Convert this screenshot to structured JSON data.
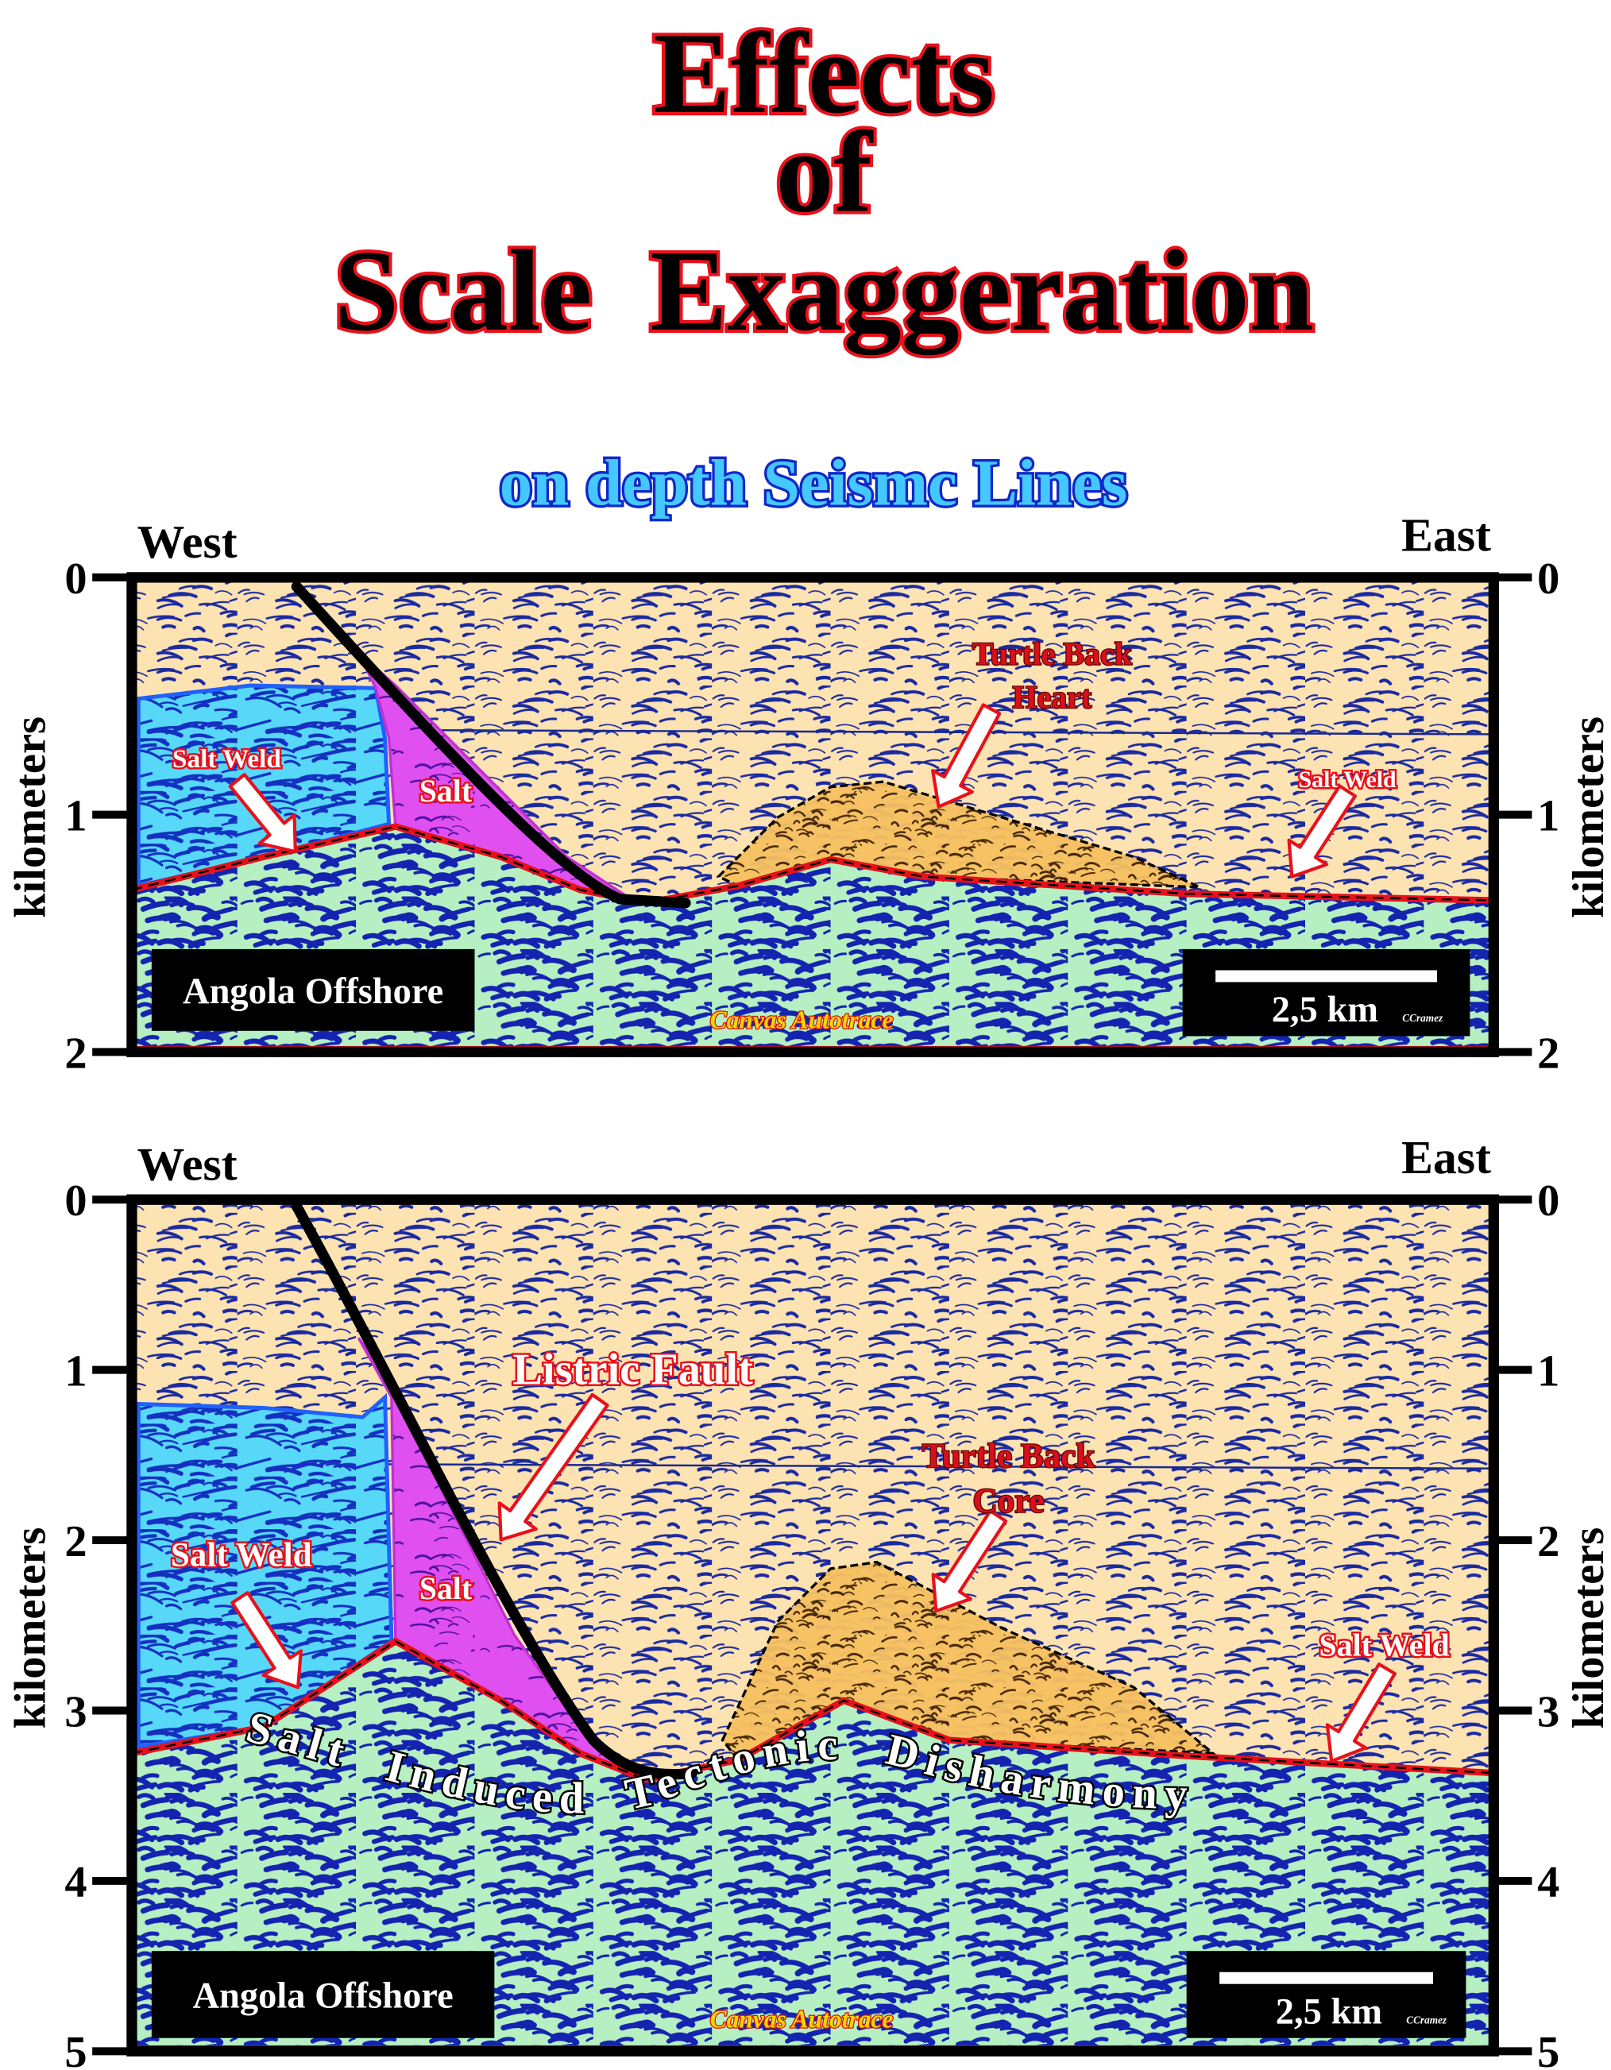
{
  "title": {
    "lines": [
      "Effects",
      "of",
      "Scale  Exaggeration"
    ]
  },
  "subtitle": "on depth Seismc Lines",
  "panels": [
    {
      "west": "West",
      "east": "East",
      "axis_label_left": "kilometers",
      "axis_label_right": "kilometers",
      "left_ticks": [
        0,
        1,
        2
      ],
      "right_ticks": [
        0,
        1,
        2
      ],
      "labels": {
        "salt_weld_left": "Salt Weld",
        "salt": "Salt",
        "turtle_back": [
          "Turtle Back",
          "Heart"
        ],
        "salt_weld_right": "Salt Weld"
      },
      "location": "Angola Offshore",
      "scale_bar": "2,5 km",
      "credit": "CCramez",
      "software": "Canvas Autotrace"
    },
    {
      "west": "West",
      "east": "East",
      "axis_label_left": "kilometers",
      "axis_label_right": "kilometers",
      "left_ticks": [
        0,
        1,
        2,
        3,
        4,
        5
      ],
      "right_ticks": [
        0,
        1,
        2,
        3,
        4,
        5
      ],
      "labels": {
        "listric_fault": "Listric Fault",
        "turtle_back": [
          "Turtle Back",
          "Core"
        ],
        "salt_weld_left": "Salt Weld",
        "salt": "Salt",
        "salt_weld_right": "Salt Weld",
        "disharmony": "Salt  Induced  Tectonic  Disharmony"
      },
      "location": "Angola Offshore",
      "scale_bar": "2,5 km",
      "credit": "CCramez",
      "software": "Canvas Autotrace"
    }
  ]
}
